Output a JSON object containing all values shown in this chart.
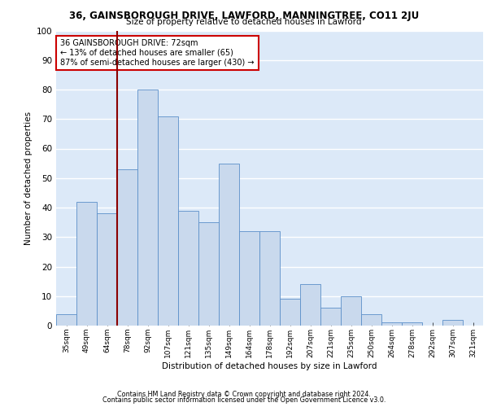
{
  "title": "36, GAINSBOROUGH DRIVE, LAWFORD, MANNINGTREE, CO11 2JU",
  "subtitle": "Size of property relative to detached houses in Lawford",
  "xlabel": "Distribution of detached houses by size in Lawford",
  "ylabel": "Number of detached properties",
  "categories": [
    "35sqm",
    "49sqm",
    "64sqm",
    "78sqm",
    "92sqm",
    "107sqm",
    "121sqm",
    "135sqm",
    "149sqm",
    "164sqm",
    "178sqm",
    "192sqm",
    "207sqm",
    "221sqm",
    "235sqm",
    "250sqm",
    "264sqm",
    "278sqm",
    "292sqm",
    "307sqm",
    "321sqm"
  ],
  "values": [
    4,
    42,
    38,
    53,
    80,
    71,
    39,
    35,
    55,
    32,
    32,
    9,
    14,
    6,
    10,
    4,
    1,
    1,
    0,
    2,
    0
  ],
  "bar_color": "#c9d9ed",
  "bar_edge_color": "#5b8fc9",
  "bar_width": 1.0,
  "background_color": "#dce9f8",
  "grid_color": "#ffffff",
  "vline_color": "#8b0000",
  "vline_pos": 2.5,
  "annotation_text": "36 GAINSBOROUGH DRIVE: 72sqm\n← 13% of detached houses are smaller (65)\n87% of semi-detached houses are larger (430) →",
  "annotation_box_color": "#ffffff",
  "annotation_box_edge": "#cc0000",
  "ylim": [
    0,
    100
  ],
  "yticks": [
    0,
    10,
    20,
    30,
    40,
    50,
    60,
    70,
    80,
    90,
    100
  ],
  "footer1": "Contains HM Land Registry data © Crown copyright and database right 2024.",
  "footer2": "Contains public sector information licensed under the Open Government Licence v3.0."
}
